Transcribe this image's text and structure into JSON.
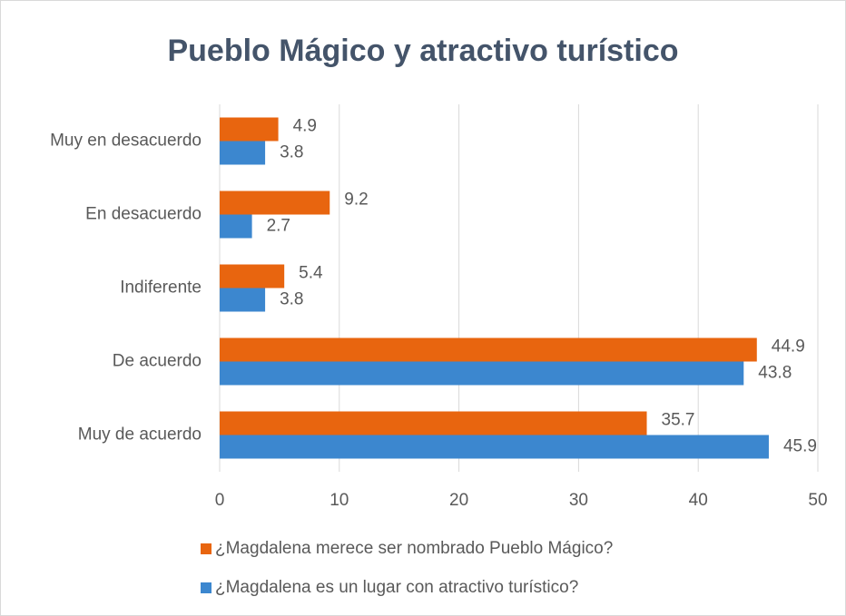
{
  "chart_data": {
    "type": "hbar",
    "title": "Pueblo Mágico y atractivo turístico",
    "categories": [
      "Muy en desacuerdo",
      "En desacuerdo",
      "Indiferente",
      "De acuerdo",
      "Muy de acuerdo"
    ],
    "series": [
      {
        "name": "¿Magdalena merece ser nombrado Pueblo Mágico?",
        "color": "#e8650f",
        "values": [
          4.9,
          9.2,
          5.4,
          44.9,
          35.7
        ]
      },
      {
        "name": "¿Magdalena es un lugar con atractivo turístico?",
        "color": "#3c87cf",
        "values": [
          3.8,
          2.7,
          3.8,
          43.8,
          45.9
        ]
      }
    ],
    "xlim": [
      0,
      50
    ],
    "xticks": [
      0,
      10,
      20,
      30,
      40,
      50
    ],
    "grid": true,
    "legend": "bottom"
  }
}
